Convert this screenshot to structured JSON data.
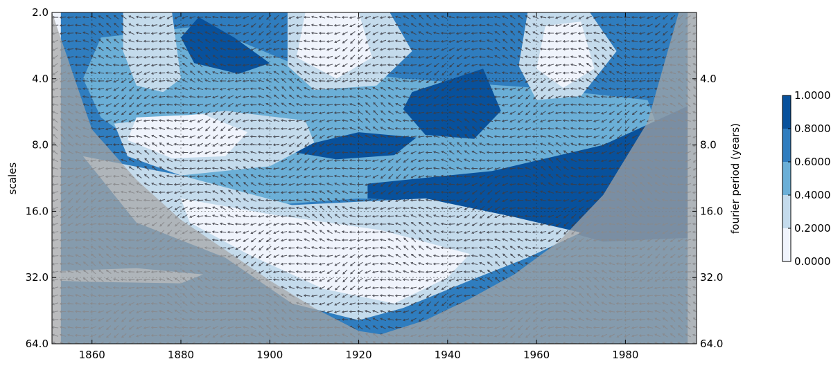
{
  "chart_data": {
    "type": "heatmap",
    "title": "",
    "xlabel": "",
    "ylabel": "scales",
    "y2label": "fourier period (years)",
    "x_ticks": [
      1860,
      1880,
      1900,
      1920,
      1940,
      1960,
      1980
    ],
    "xlim": [
      1851,
      1996
    ],
    "ylim": [
      64.0,
      2.0
    ],
    "y_scale": "log2",
    "y_inverted": true,
    "y_ticks": [
      "2.0",
      "4.0",
      "8.0",
      "16.0",
      "32.0",
      "64.0"
    ],
    "y2_ticks": [
      "4.0",
      "8.0",
      "16.0",
      "32.0",
      "64.0"
    ],
    "y2_tick_values": [
      4.0,
      8.0,
      16.0,
      32.0,
      64.0
    ],
    "grid": true,
    "colorbar": {
      "labels": [
        "1.0000",
        "0.8000",
        "0.6000",
        "0.4000",
        "0.2000",
        "0.0000"
      ],
      "levels": [
        0.0,
        0.2,
        0.4,
        0.6,
        0.8,
        1.0
      ],
      "colors": [
        "#f0f4fc",
        "#c4dbec",
        "#6bafd7",
        "#2f7dbf",
        "#08519c"
      ]
    },
    "cone_of_influence": [
      [
        1851,
        2.0
      ],
      [
        1860,
        6.8
      ],
      [
        1870,
        11.5
      ],
      [
        1880,
        17.5
      ],
      [
        1890,
        24.0
      ],
      [
        1900,
        33.0
      ],
      [
        1910,
        44.0
      ],
      [
        1920,
        56.0
      ],
      [
        1925,
        58.0
      ],
      [
        1935,
        50.0
      ],
      [
        1945,
        40.0
      ],
      [
        1955,
        31.0
      ],
      [
        1965,
        22.0
      ],
      [
        1975,
        13.5
      ],
      [
        1985,
        6.3
      ],
      [
        1992,
        2.0
      ]
    ],
    "regions": [
      {
        "level": 0.7,
        "points": [
          [
            1851,
            2
          ],
          [
            1997,
            2
          ],
          [
            1997,
            64
          ],
          [
            1851,
            64
          ]
        ]
      },
      {
        "level": 0.5,
        "points": [
          [
            1862,
            2.6
          ],
          [
            1885,
            2.3
          ],
          [
            1905,
            3.4
          ],
          [
            1930,
            4.0
          ],
          [
            1960,
            4.4
          ],
          [
            1985,
            5.0
          ],
          [
            1990,
            9.5
          ],
          [
            1975,
            14.0
          ],
          [
            1945,
            14.5
          ],
          [
            1920,
            14.0
          ],
          [
            1900,
            15.0
          ],
          [
            1880,
            11.0
          ],
          [
            1862,
            6.0
          ],
          [
            1858,
            4.0
          ]
        ]
      },
      {
        "level": 0.9,
        "points": [
          [
            1884,
            2.1
          ],
          [
            1892,
            2.6
          ],
          [
            1900,
            3.4
          ],
          [
            1893,
            3.8
          ],
          [
            1883,
            3.4
          ],
          [
            1880,
            2.6
          ]
        ]
      },
      {
        "level": 0.9,
        "points": [
          [
            1908,
            8.0
          ],
          [
            1920,
            7.0
          ],
          [
            1933,
            7.4
          ],
          [
            1928,
            8.9
          ],
          [
            1915,
            9.3
          ],
          [
            1905,
            8.6
          ]
        ]
      },
      {
        "level": 0.9,
        "points": [
          [
            1932,
            4.6
          ],
          [
            1948,
            3.6
          ],
          [
            1952,
            5.6
          ],
          [
            1946,
            7.5
          ],
          [
            1935,
            7.2
          ],
          [
            1930,
            5.5
          ]
        ]
      },
      {
        "level": 0.9,
        "points": [
          [
            1922,
            12.0
          ],
          [
            1950,
            10.5
          ],
          [
            1975,
            8.0
          ],
          [
            1997,
            5.0
          ],
          [
            1997,
            21.0
          ],
          [
            1975,
            22.0
          ],
          [
            1955,
            17.0
          ],
          [
            1935,
            14.5
          ],
          [
            1922,
            14.0
          ]
        ]
      },
      {
        "level": 0.3,
        "points": [
          [
            1867,
            2.0
          ],
          [
            1878,
            2.0
          ],
          [
            1880,
            4.0
          ],
          [
            1876,
            4.6
          ],
          [
            1870,
            4.3
          ],
          [
            1867,
            3.0
          ]
        ]
      },
      {
        "level": 0.3,
        "points": [
          [
            1904,
            2.0
          ],
          [
            1927,
            2.0
          ],
          [
            1932,
            3.0
          ],
          [
            1924,
            4.3
          ],
          [
            1910,
            4.5
          ],
          [
            1904,
            3.5
          ]
        ]
      },
      {
        "level": 0.3,
        "points": [
          [
            1958,
            2.0
          ],
          [
            1972,
            2.0
          ],
          [
            1978,
            3.0
          ],
          [
            1970,
            4.8
          ],
          [
            1960,
            5.0
          ],
          [
            1956,
            3.5
          ]
        ]
      },
      {
        "level": 0.3,
        "points": [
          [
            1865,
            6.4
          ],
          [
            1890,
            5.6
          ],
          [
            1908,
            6.2
          ],
          [
            1910,
            7.8
          ],
          [
            1900,
            10.0
          ],
          [
            1880,
            11.0
          ],
          [
            1868,
            9.0
          ]
        ]
      },
      {
        "level": 0.3,
        "points": [
          [
            1858,
            9.0
          ],
          [
            1880,
            11.0
          ],
          [
            1905,
            15.0
          ],
          [
            1935,
            14.0
          ],
          [
            1955,
            17.0
          ],
          [
            1970,
            20.0
          ],
          [
            1958,
            26.0
          ],
          [
            1945,
            33.0
          ],
          [
            1930,
            44.0
          ],
          [
            1920,
            50.0
          ],
          [
            1905,
            42.0
          ],
          [
            1890,
            26.0
          ],
          [
            1870,
            18.0
          ]
        ]
      },
      {
        "level": 0.1,
        "points": [
          [
            1908,
            2.0
          ],
          [
            1920,
            2.0
          ],
          [
            1923,
            3.2
          ],
          [
            1915,
            4.0
          ],
          [
            1906,
            3.2
          ]
        ]
      },
      {
        "level": 0.1,
        "points": [
          [
            1962,
            2.3
          ],
          [
            1970,
            2.2
          ],
          [
            1973,
            3.6
          ],
          [
            1966,
            4.4
          ],
          [
            1960,
            3.6
          ]
        ]
      },
      {
        "level": 0.1,
        "points": [
          [
            1870,
            6.0
          ],
          [
            1885,
            5.8
          ],
          [
            1895,
            7.0
          ],
          [
            1890,
            9.0
          ],
          [
            1878,
            9.2
          ],
          [
            1868,
            7.6
          ]
        ]
      },
      {
        "level": 0.1,
        "points": [
          [
            1880,
            14.0
          ],
          [
            1900,
            16.5
          ],
          [
            1925,
            19.5
          ],
          [
            1945,
            25.0
          ],
          [
            1940,
            32.0
          ],
          [
            1928,
            42.0
          ],
          [
            1912,
            36.0
          ],
          [
            1895,
            25.0
          ],
          [
            1882,
            18.0
          ]
        ]
      },
      {
        "level": 0.3,
        "points": [
          [
            1851,
            30.0
          ],
          [
            1870,
            29.0
          ],
          [
            1885,
            31.0
          ],
          [
            1880,
            34.0
          ],
          [
            1860,
            33.5
          ],
          [
            1851,
            33.0
          ]
        ]
      },
      {
        "level": 0.1,
        "points": [
          [
            1851,
            64.0
          ],
          [
            1853,
            64.0
          ],
          [
            1853,
            2.0
          ],
          [
            1851,
            2.0
          ]
        ]
      },
      {
        "level": 0.3,
        "points": [
          [
            1994,
            2.0
          ],
          [
            1997,
            2.0
          ],
          [
            1997,
            64.0
          ],
          [
            1994,
            64.0
          ]
        ]
      }
    ]
  }
}
